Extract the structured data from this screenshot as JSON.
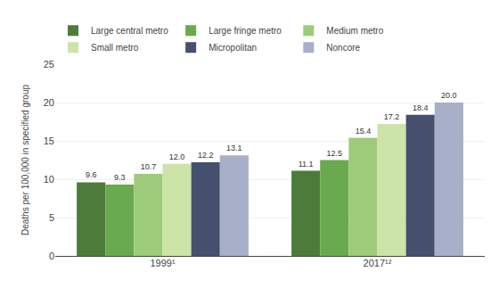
{
  "chart_data": {
    "type": "bar",
    "categories": [
      "1999¹",
      "2017¹²"
    ],
    "series": [
      {
        "name": "Large central metro",
        "values": [
          9.6,
          11.1
        ],
        "value_labels": [
          "9.6",
          "11.1"
        ],
        "color": "#4d7c3a"
      },
      {
        "name": "Large fringe metro",
        "values": [
          9.3,
          12.5
        ],
        "value_labels": [
          "9.3",
          "12.5"
        ],
        "color": "#6aaa4e"
      },
      {
        "name": "Medium metro",
        "values": [
          10.7,
          15.4
        ],
        "value_labels": [
          "10.7",
          "15.4"
        ],
        "color": "#9ecb7a"
      },
      {
        "name": "Small metro",
        "values": [
          12.0,
          17.2
        ],
        "value_labels": [
          "12.0",
          "17.2"
        ],
        "color": "#cce4a8"
      },
      {
        "name": "Micropolitan",
        "values": [
          12.2,
          18.4
        ],
        "value_labels": [
          "12.2",
          "18.4"
        ],
        "color": "#454f6e"
      },
      {
        "name": "Noncore",
        "values": [
          13.1,
          20.0
        ],
        "value_labels": [
          "13.1",
          "20.0"
        ],
        "color": "#a8afc8"
      }
    ],
    "ylabel": "Deaths per 100,000 in specified group",
    "ylim": [
      0,
      25
    ],
    "yticks": [
      0,
      5,
      10,
      15,
      20,
      25
    ],
    "grid": true,
    "legend": "top",
    "data_labels": true
  }
}
